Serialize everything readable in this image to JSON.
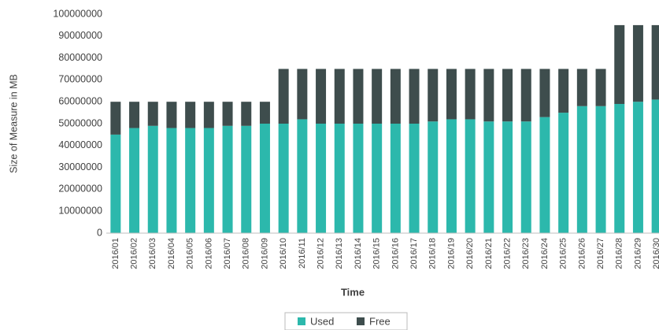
{
  "chart_data": {
    "type": "stacked_bar",
    "x_label": "Time",
    "y_label": "Size of Measure in MB",
    "categories": [
      "2016/01",
      "2016/02",
      "2016/03",
      "2016/04",
      "2016/05",
      "2016/06",
      "2016/07",
      "2016/08",
      "2016/09",
      "2016/10",
      "2016/11",
      "2016/12",
      "2016/13",
      "2016/14",
      "2016/15",
      "2016/16",
      "2016/17",
      "2016/18",
      "2016/19",
      "2016/20",
      "2016/21",
      "2016/22",
      "2016/23",
      "2016/24",
      "2016/25",
      "2016/26",
      "2016/27",
      "2016/28",
      "2016/29",
      "2016/30"
    ],
    "series": [
      {
        "name": "Used",
        "color": "#2cb8ac",
        "values": [
          45000000,
          48000000,
          49000000,
          48000000,
          48000000,
          48000000,
          49000000,
          49000000,
          50000000,
          50000000,
          52000000,
          50000000,
          50000000,
          50000000,
          50000000,
          50000000,
          50000000,
          51000000,
          52000000,
          52000000,
          51000000,
          51000000,
          51000000,
          53000000,
          55000000,
          58000000,
          58000000,
          59000000,
          60000000,
          61000000
        ]
      },
      {
        "name": "Free",
        "color": "#3e4d4d",
        "values": [
          15000000,
          12000000,
          11000000,
          12000000,
          12000000,
          12000000,
          11000000,
          11000000,
          10000000,
          25000000,
          23000000,
          25000000,
          25000000,
          25000000,
          25000000,
          25000000,
          25000000,
          24000000,
          23000000,
          23000000,
          24000000,
          24000000,
          24000000,
          22000000,
          20000000,
          17000000,
          17000000,
          36000000,
          35000000,
          34000000
        ]
      }
    ],
    "ylim": [
      0,
      100000000
    ],
    "yticks": [
      0,
      10000000,
      20000000,
      30000000,
      40000000,
      50000000,
      60000000,
      70000000,
      80000000,
      90000000,
      100000000
    ],
    "grid": false,
    "legend": "bottom"
  }
}
